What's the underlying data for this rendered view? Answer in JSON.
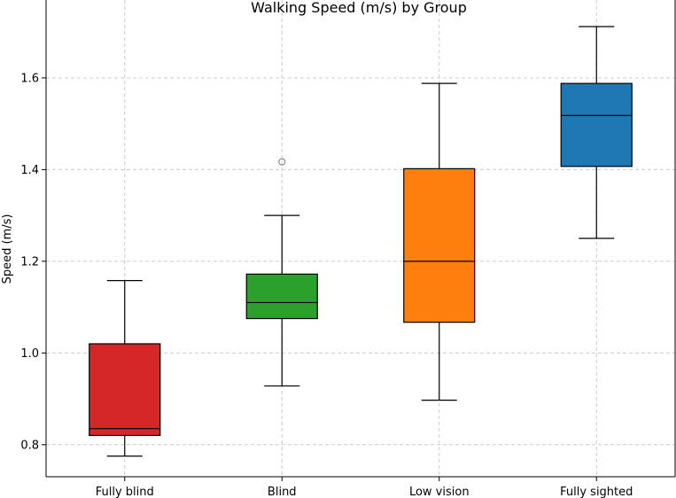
{
  "chart_data": {
    "type": "boxplot",
    "title": "Walking Speed (m/s) by Group",
    "xlabel": "",
    "ylabel": "Speed (m/s)",
    "ylim": [
      0.73,
      1.77
    ],
    "grid": true,
    "yticks": [
      0.8,
      1.0,
      1.2,
      1.4,
      1.6
    ],
    "ytick_labels": [
      "0.8",
      "1.0",
      "1.2",
      "1.4",
      "1.6"
    ],
    "groups": [
      {
        "name": "Fully blind",
        "color": "#d62728",
        "whisker_low": 0.775,
        "q1": 0.82,
        "median": 0.835,
        "q3": 1.02,
        "whisker_high": 1.158,
        "outliers": []
      },
      {
        "name": "Blind",
        "color": "#2ca02c",
        "whisker_low": 0.928,
        "q1": 1.075,
        "median": 1.11,
        "q3": 1.172,
        "whisker_high": 1.3,
        "outliers": [
          1.417
        ]
      },
      {
        "name": "Low vision",
        "color": "#ff7f0e",
        "whisker_low": 0.897,
        "q1": 1.067,
        "median": 1.2,
        "q3": 1.402,
        "whisker_high": 1.588,
        "outliers": []
      },
      {
        "name": "Fully sighted",
        "color": "#1f77b4",
        "whisker_low": 1.25,
        "q1": 1.407,
        "median": 1.518,
        "q3": 1.588,
        "whisker_high": 1.712,
        "outliers": []
      }
    ]
  }
}
